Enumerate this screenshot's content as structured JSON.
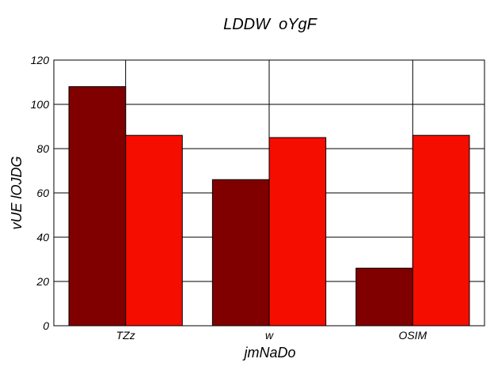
{
  "chart_data": {
    "type": "bar",
    "title": "LDDW  oYgF",
    "xlabel": "jmNaDo",
    "ylabel": "vUE lOJDG",
    "categories": [
      "TZz",
      "w",
      "OSIM"
    ],
    "series": [
      {
        "values": [
          108,
          66,
          26
        ],
        "color": "#800000"
      },
      {
        "values": [
          86,
          85,
          86
        ],
        "color": "#f50d00"
      }
    ],
    "ylim": [
      0,
      120
    ],
    "yticks": [
      0,
      20,
      40,
      60,
      80,
      100,
      120
    ],
    "grid": true,
    "legend": "none"
  }
}
